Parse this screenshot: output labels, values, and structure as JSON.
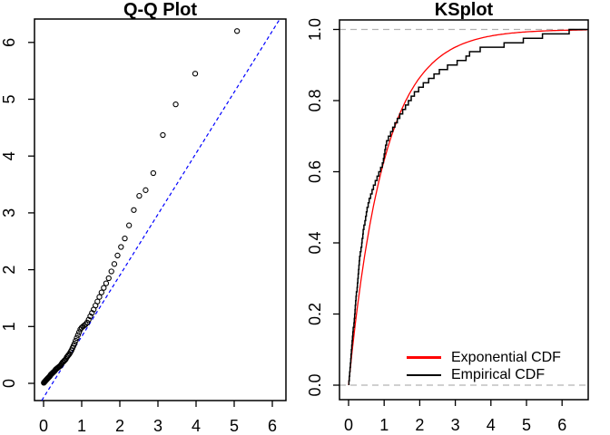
{
  "page": {
    "background": "#ffffff"
  },
  "chart_data": [
    {
      "type": "scatter",
      "title": "Q-Q Plot",
      "xlabel": "",
      "ylabel": "",
      "x_ticks": [
        0,
        1,
        2,
        3,
        4,
        5,
        6
      ],
      "x_tick_labels": [
        "0",
        "1",
        "2",
        "3",
        "4",
        "5",
        "6"
      ],
      "y_ticks": [
        0,
        1,
        2,
        3,
        4,
        5,
        6
      ],
      "y_tick_labels": [
        "0",
        "1",
        "2",
        "3",
        "4",
        "5",
        "6"
      ],
      "xlim": [
        -0.24,
        6.36
      ],
      "ylim": [
        -0.3,
        6.41
      ],
      "grid": false,
      "marker": "open-circle",
      "marker_color": "#000000",
      "reference_line": {
        "slope": 1.075,
        "intercept": -0.25,
        "color": "#0000ff",
        "style": "dashed"
      },
      "points": [
        [
          0.006,
          0.01
        ],
        [
          0.019,
          0.02
        ],
        [
          0.032,
          0.03
        ],
        [
          0.045,
          0.04
        ],
        [
          0.058,
          0.05
        ],
        [
          0.071,
          0.06
        ],
        [
          0.085,
          0.07
        ],
        [
          0.098,
          0.08
        ],
        [
          0.112,
          0.09
        ],
        [
          0.126,
          0.1
        ],
        [
          0.141,
          0.11
        ],
        [
          0.155,
          0.12
        ],
        [
          0.17,
          0.13
        ],
        [
          0.185,
          0.15
        ],
        [
          0.2,
          0.16
        ],
        [
          0.215,
          0.17
        ],
        [
          0.231,
          0.18
        ],
        [
          0.247,
          0.19
        ],
        [
          0.263,
          0.2
        ],
        [
          0.279,
          0.21
        ],
        [
          0.296,
          0.22
        ],
        [
          0.313,
          0.24
        ],
        [
          0.33,
          0.25
        ],
        [
          0.348,
          0.26
        ],
        [
          0.366,
          0.27
        ],
        [
          0.384,
          0.28
        ],
        [
          0.402,
          0.29
        ],
        [
          0.421,
          0.3
        ],
        [
          0.44,
          0.31
        ],
        [
          0.46,
          0.33
        ],
        [
          0.48,
          0.35
        ],
        [
          0.5,
          0.37
        ],
        [
          0.521,
          0.38
        ],
        [
          0.543,
          0.4
        ],
        [
          0.564,
          0.41
        ],
        [
          0.587,
          0.43
        ],
        [
          0.609,
          0.46
        ],
        [
          0.633,
          0.48
        ],
        [
          0.656,
          0.5
        ],
        [
          0.681,
          0.52
        ],
        [
          0.706,
          0.55
        ],
        [
          0.731,
          0.58
        ],
        [
          0.758,
          0.62
        ],
        [
          0.785,
          0.66
        ],
        [
          0.813,
          0.7
        ],
        [
          0.841,
          0.75
        ],
        [
          0.87,
          0.8
        ],
        [
          0.901,
          0.85
        ],
        [
          0.932,
          0.9
        ],
        [
          0.964,
          0.95
        ],
        [
          0.998,
          0.98
        ],
        [
          1.032,
          1.0
        ],
        [
          1.068,
          1.02
        ],
        [
          1.105,
          1.04
        ],
        [
          1.143,
          1.07
        ],
        [
          1.183,
          1.12
        ],
        [
          1.225,
          1.18
        ],
        [
          1.269,
          1.24
        ],
        [
          1.314,
          1.3
        ],
        [
          1.362,
          1.37
        ],
        [
          1.412,
          1.44
        ],
        [
          1.464,
          1.52
        ],
        [
          1.52,
          1.6
        ],
        [
          1.579,
          1.68
        ],
        [
          1.641,
          1.76
        ],
        [
          1.708,
          1.85
        ],
        [
          1.779,
          1.97
        ],
        [
          1.856,
          2.1
        ],
        [
          1.94,
          2.25
        ],
        [
          2.031,
          2.4
        ],
        [
          2.131,
          2.55
        ],
        [
          2.242,
          2.78
        ],
        [
          2.367,
          3.05
        ],
        [
          2.51,
          3.3
        ],
        [
          2.677,
          3.4
        ],
        [
          2.878,
          3.7
        ],
        [
          3.129,
          4.37
        ],
        [
          3.466,
          4.91
        ],
        [
          3.977,
          5.45
        ],
        [
          5.075,
          6.2
        ]
      ]
    },
    {
      "type": "line",
      "title": "KSplot",
      "xlabel": "",
      "ylabel": "",
      "x_ticks": [
        0,
        1,
        2,
        3,
        4,
        5,
        6
      ],
      "x_tick_labels": [
        "0",
        "1",
        "2",
        "3",
        "4",
        "5",
        "6"
      ],
      "y_ticks": [
        0,
        0.2,
        0.4,
        0.6,
        0.8,
        1
      ],
      "y_tick_labels": [
        "0.0",
        "0.2",
        "0.4",
        "0.6",
        "0.8",
        "1.0"
      ],
      "xlim": [
        -0.26,
        6.73
      ],
      "ylim": [
        -0.041,
        1.027
      ],
      "grid": false,
      "guide_lines": {
        "y": [
          0,
          1
        ],
        "color": "#b3b3b3",
        "style": "dashed"
      },
      "legend": {
        "position": "bottom-right"
      },
      "series": [
        {
          "name": "Exponential CDF",
          "color": "#ff0000",
          "kind": "function",
          "formula": "F(x) = 1 - exp(-rate*x)",
          "rate": 1
        },
        {
          "name": "Empirical CDF",
          "color": "#000000",
          "kind": "ecdf",
          "sample_sorted": [
            0.01,
            0.02,
            0.03,
            0.04,
            0.05,
            0.06,
            0.07,
            0.08,
            0.09,
            0.1,
            0.11,
            0.12,
            0.13,
            0.15,
            0.16,
            0.17,
            0.18,
            0.19,
            0.2,
            0.21,
            0.22,
            0.24,
            0.25,
            0.26,
            0.27,
            0.28,
            0.29,
            0.3,
            0.31,
            0.33,
            0.35,
            0.37,
            0.38,
            0.4,
            0.41,
            0.43,
            0.46,
            0.48,
            0.5,
            0.52,
            0.55,
            0.58,
            0.62,
            0.66,
            0.7,
            0.75,
            0.8,
            0.85,
            0.9,
            0.95,
            0.98,
            1.0,
            1.02,
            1.04,
            1.07,
            1.12,
            1.18,
            1.24,
            1.3,
            1.37,
            1.44,
            1.52,
            1.6,
            1.68,
            1.76,
            1.85,
            1.97,
            2.1,
            2.25,
            2.4,
            2.55,
            2.78,
            3.05,
            3.3,
            3.4,
            3.7,
            4.37,
            4.91,
            5.45,
            6.2
          ]
        }
      ]
    }
  ]
}
